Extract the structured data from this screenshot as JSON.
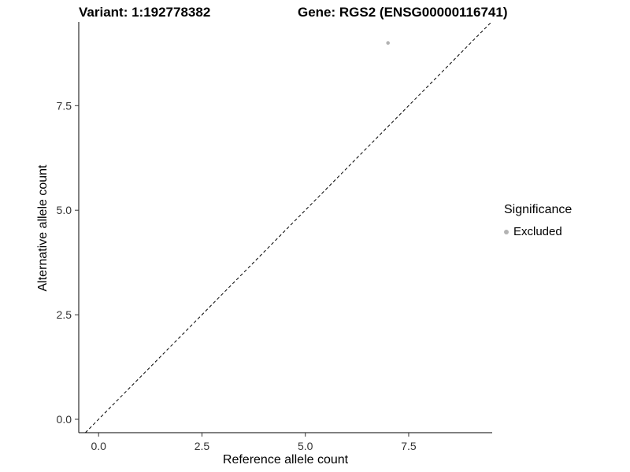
{
  "chart_data": {
    "type": "scatter",
    "title_left": "Variant: 1:192778382",
    "title_right": "Gene: RGS2 (ENSG00000116741)",
    "xlabel": "Reference allele count",
    "ylabel": "Alternative allele count",
    "xlim": [
      -0.48,
      9.52
    ],
    "ylim": [
      -0.32,
      9.5
    ],
    "xticks": [
      "0.0",
      "2.5",
      "5.0",
      "7.5"
    ],
    "yticks": [
      "0.0",
      "2.5",
      "5.0",
      "7.5"
    ],
    "grid": false,
    "axis_color": "#000000",
    "tick_label_color": "#333333",
    "series": [
      {
        "name": "Excluded",
        "color": "#b3b3b3",
        "points": [
          {
            "x": 7,
            "y": 9
          }
        ]
      }
    ],
    "reference_line": {
      "type": "identity",
      "style": "dashed",
      "color": "#000000"
    },
    "legend": {
      "title": "Significance",
      "position": "right",
      "entries": [
        {
          "label": "Excluded",
          "color": "#b3b3b3"
        }
      ]
    }
  }
}
